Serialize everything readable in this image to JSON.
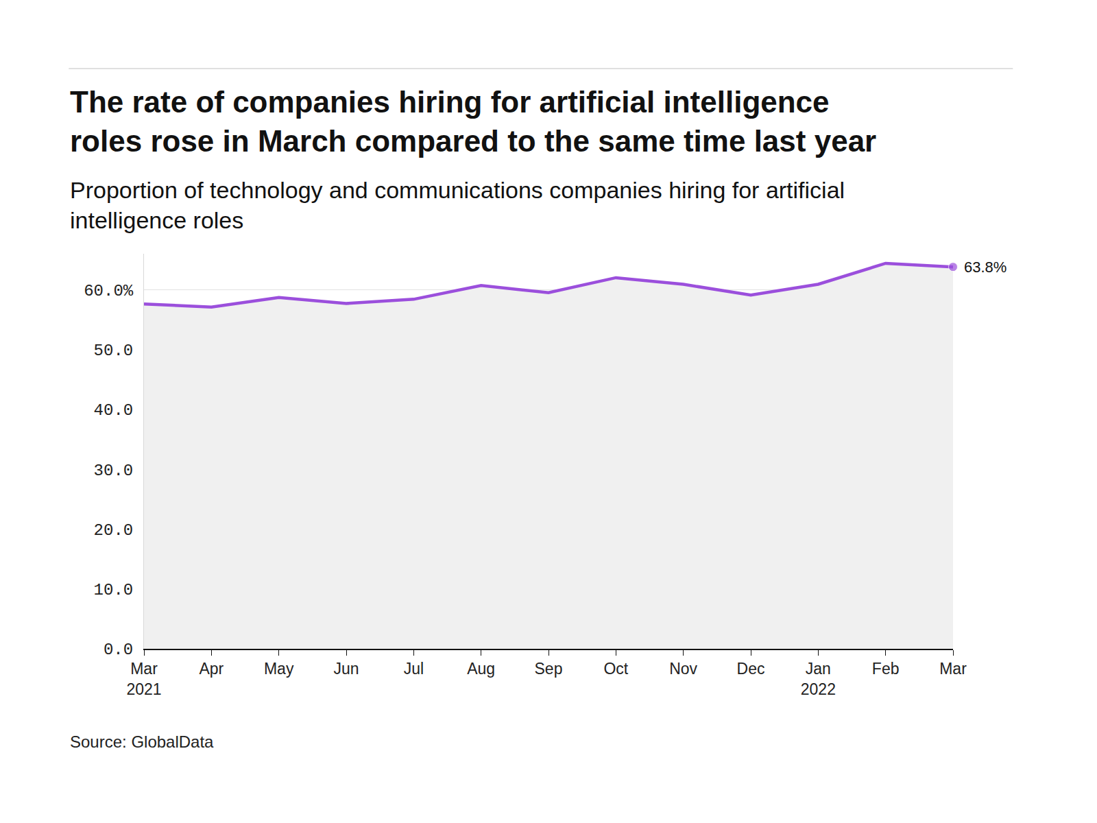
{
  "chart_data": {
    "type": "line",
    "title": "The rate of companies hiring for artificial intelligence roles rose in March compared to the same time last year",
    "subtitle": "Proportion of technology and communications companies hiring for artificial intelligence roles",
    "source": "Source: GlobalData",
    "categories": [
      "Mar 2021",
      "Apr",
      "May",
      "Jun",
      "Jul",
      "Aug",
      "Sep",
      "Oct",
      "Nov",
      "Dec",
      "Jan 2022",
      "Feb",
      "Mar"
    ],
    "values": [
      57.6,
      57.1,
      58.7,
      57.7,
      58.4,
      60.7,
      59.5,
      62.0,
      60.9,
      59.1,
      60.9,
      64.4,
      63.8
    ],
    "color": "#9b4fdc",
    "ylim": [
      0,
      66
    ],
    "yticks": [
      {
        "value": 0,
        "label": "0.0"
      },
      {
        "value": 10,
        "label": "10.0"
      },
      {
        "value": 20,
        "label": "20.0"
      },
      {
        "value": 30,
        "label": "30.0"
      },
      {
        "value": 40,
        "label": "40.0"
      },
      {
        "value": 50,
        "label": "50.0"
      },
      {
        "value": 60,
        "label": "60.0%"
      }
    ],
    "grid": true,
    "annotations": [
      {
        "text": "63.8%",
        "category": "Mar",
        "value": 63.8
      }
    ]
  }
}
